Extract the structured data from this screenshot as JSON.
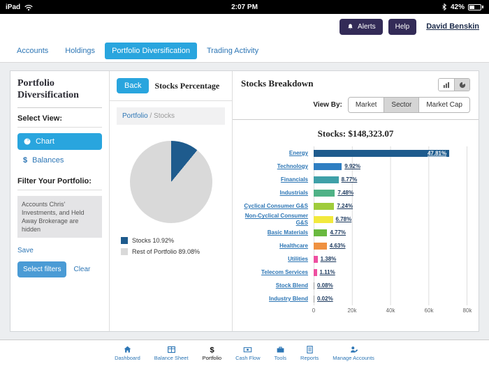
{
  "status_bar": {
    "device": "iPad",
    "time": "2:07 PM",
    "battery": "42%"
  },
  "header": {
    "alerts_label": "Alerts",
    "help_label": "Help",
    "user_name": "David Benskin"
  },
  "nav_tabs": [
    {
      "label": "Accounts",
      "active": false
    },
    {
      "label": "Holdings",
      "active": false
    },
    {
      "label": "Portfolio Diversification",
      "active": true
    },
    {
      "label": "Trading Activity",
      "active": false
    }
  ],
  "sidebar": {
    "title": "Portfolio Diversification",
    "select_view_label": "Select View:",
    "view_chart_label": "Chart",
    "balances_prefix": "$",
    "view_balances_label": "Balances",
    "filter_heading": "Filter Your Portfolio:",
    "filter_note": "Accounts Chris' Investments, and Held Away Brokerage are hidden",
    "save_label": "Save",
    "select_filters_label": "Select filters",
    "clear_label": "Clear"
  },
  "stocks_panel": {
    "back_label": "Back",
    "title": "Stocks Percentage",
    "breadcrumb_root": "Portfolio",
    "breadcrumb_sep": "/",
    "breadcrumb_current": "Stocks"
  },
  "breakdown_panel": {
    "title": "Stocks Breakdown",
    "view_by_label": "View By:",
    "view_options": [
      {
        "label": "Market",
        "selected": false
      },
      {
        "label": "Sector",
        "selected": true
      },
      {
        "label": "Market Cap",
        "selected": false
      }
    ]
  },
  "bottom_nav": [
    {
      "label": "Dashboard",
      "icon": "home-icon",
      "active": false
    },
    {
      "label": "Balance Sheet",
      "icon": "balance-sheet-icon",
      "active": false
    },
    {
      "label": "Portfolio",
      "icon": "dollar-icon",
      "active": true
    },
    {
      "label": "Cash Flow",
      "icon": "cash-flow-icon",
      "active": false
    },
    {
      "label": "Tools",
      "icon": "tools-icon",
      "active": false
    },
    {
      "label": "Reports",
      "icon": "reports-icon",
      "active": false
    },
    {
      "label": "Manage Accounts",
      "icon": "manage-accounts-icon",
      "active": false
    }
  ],
  "chart_data": [
    {
      "type": "pie",
      "title": "Stocks Percentage",
      "slices": [
        {
          "label": "Stocks",
          "value_pct": 10.92,
          "color": "#1e5b8d",
          "legend": "Stocks 10.92%"
        },
        {
          "label": "Rest of Portfolio",
          "value_pct": 89.08,
          "color": "#d9d9d9",
          "legend": "Rest of Portfolio 89.08%"
        }
      ]
    },
    {
      "type": "bar",
      "orientation": "horizontal",
      "title": "Stocks: $148,323.07",
      "total_value": 148323.07,
      "xlim": [
        0,
        80000
      ],
      "x_ticks": [
        "0",
        "20k",
        "40k",
        "60k",
        "80k"
      ],
      "categories": [
        "Energy",
        "Technology",
        "Financials",
        "Industrials",
        "Cyclical Consumer G&S",
        "Non-Cyclical Consumer G&S",
        "Basic Materials",
        "Healthcare",
        "Utilities",
        "Telecom Services",
        "Stock Blend",
        "Industry Blend"
      ],
      "values_pct": [
        47.81,
        9.92,
        8.77,
        7.48,
        7.24,
        6.78,
        4.77,
        4.63,
        1.38,
        1.11,
        0.08,
        0.02
      ],
      "value_labels": [
        "47.81%",
        "9.92%",
        "8.77%",
        "7.48%",
        "7.24%",
        "6.78%",
        "4.77%",
        "4.63%",
        "1.38%",
        "1.11%",
        "0.08%",
        "0.02%"
      ],
      "colors": [
        "#1e5b8d",
        "#2f7ec2",
        "#3fa0a8",
        "#4fb286",
        "#9fcc3b",
        "#f2e93d",
        "#69b93f",
        "#ef9140",
        "#ee4fa0",
        "#ee4fa0",
        "#999999",
        "#999999"
      ]
    }
  ]
}
